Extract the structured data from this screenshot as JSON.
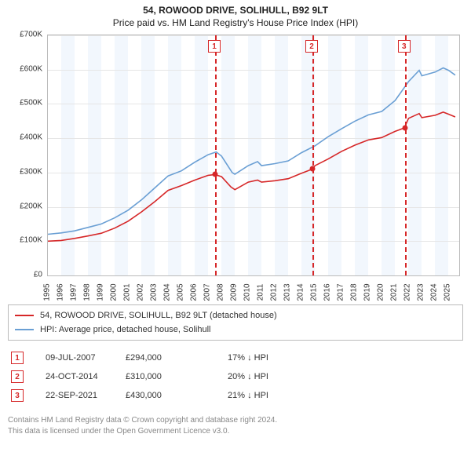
{
  "titles": {
    "line1": "54, ROWOOD DRIVE, SOLIHULL, B92 9LT",
    "line2": "Price paid vs. HM Land Registry's House Price Index (HPI)"
  },
  "chart": {
    "type": "line",
    "background_color": "#ffffff",
    "grid_color": "#e6e6e6",
    "alt_band_color": "#eaf1fb",
    "axis_color": "#bbbbbb",
    "y": {
      "min": 0,
      "max": 700000,
      "step": 100000,
      "prefix": "£",
      "suffix": "K",
      "ticks": [
        "£0",
        "£100K",
        "£200K",
        "£300K",
        "£400K",
        "£500K",
        "£600K",
        "£700K"
      ]
    },
    "x": {
      "min": 1995,
      "max": 2025.8,
      "step": 1,
      "ticks": [
        "1995",
        "1996",
        "1997",
        "1998",
        "1999",
        "2000",
        "2001",
        "2002",
        "2003",
        "2004",
        "2005",
        "2006",
        "2007",
        "2008",
        "2009",
        "2010",
        "2011",
        "2012",
        "2013",
        "2014",
        "2015",
        "2016",
        "2017",
        "2018",
        "2019",
        "2020",
        "2021",
        "2022",
        "2023",
        "2024",
        "2025"
      ]
    },
    "series": [
      {
        "name": "54, ROWOOD DRIVE, SOLIHULL, B92 9LT (detached house)",
        "color": "#d62728",
        "line_width": 1.6,
        "points": [
          [
            1995,
            100000
          ],
          [
            1996,
            102000
          ],
          [
            1997,
            108000
          ],
          [
            1998,
            115000
          ],
          [
            1999,
            123000
          ],
          [
            2000,
            138000
          ],
          [
            2001,
            158000
          ],
          [
            2002,
            185000
          ],
          [
            2003,
            215000
          ],
          [
            2004,
            248000
          ],
          [
            2005,
            262000
          ],
          [
            2006,
            278000
          ],
          [
            2007,
            292000
          ],
          [
            2007.5,
            294000
          ],
          [
            2008,
            288000
          ],
          [
            2008.7,
            258000
          ],
          [
            2009,
            250000
          ],
          [
            2010,
            272000
          ],
          [
            2010.7,
            278000
          ],
          [
            2011,
            272000
          ],
          [
            2012,
            276000
          ],
          [
            2013,
            282000
          ],
          [
            2014,
            298000
          ],
          [
            2014.8,
            310000
          ],
          [
            2015,
            320000
          ],
          [
            2016,
            340000
          ],
          [
            2017,
            362000
          ],
          [
            2018,
            380000
          ],
          [
            2019,
            395000
          ],
          [
            2020,
            402000
          ],
          [
            2021,
            420000
          ],
          [
            2021.7,
            430000
          ],
          [
            2022,
            458000
          ],
          [
            2022.8,
            472000
          ],
          [
            2023,
            460000
          ],
          [
            2024,
            467000
          ],
          [
            2024.6,
            476000
          ],
          [
            2025,
            470000
          ],
          [
            2025.5,
            462000
          ]
        ]
      },
      {
        "name": "HPI: Average price, detached house, Solihull",
        "color": "#6a9fd4",
        "line_width": 1.6,
        "points": [
          [
            1995,
            120000
          ],
          [
            1996,
            124000
          ],
          [
            1997,
            130000
          ],
          [
            1998,
            140000
          ],
          [
            1999,
            150000
          ],
          [
            2000,
            168000
          ],
          [
            2001,
            190000
          ],
          [
            2002,
            220000
          ],
          [
            2003,
            255000
          ],
          [
            2004,
            290000
          ],
          [
            2005,
            305000
          ],
          [
            2006,
            330000
          ],
          [
            2007,
            352000
          ],
          [
            2007.6,
            360000
          ],
          [
            2008,
            348000
          ],
          [
            2008.8,
            300000
          ],
          [
            2009,
            295000
          ],
          [
            2010,
            320000
          ],
          [
            2010.7,
            332000
          ],
          [
            2011,
            320000
          ],
          [
            2012,
            326000
          ],
          [
            2013,
            334000
          ],
          [
            2014,
            358000
          ],
          [
            2015,
            378000
          ],
          [
            2016,
            405000
          ],
          [
            2017,
            428000
          ],
          [
            2018,
            450000
          ],
          [
            2019,
            468000
          ],
          [
            2020,
            478000
          ],
          [
            2021,
            510000
          ],
          [
            2022,
            565000
          ],
          [
            2022.8,
            598000
          ],
          [
            2023,
            582000
          ],
          [
            2024,
            593000
          ],
          [
            2024.6,
            605000
          ],
          [
            2025,
            598000
          ],
          [
            2025.5,
            584000
          ]
        ]
      }
    ],
    "markers": [
      {
        "n": "1",
        "x": 2007.52,
        "y": 294000,
        "dot_color": "#d62728"
      },
      {
        "n": "2",
        "x": 2014.81,
        "y": 310000,
        "dot_color": "#d62728"
      },
      {
        "n": "3",
        "x": 2021.73,
        "y": 430000,
        "dot_color": "#d62728"
      }
    ],
    "marker_box_color": "#d62728",
    "marker_line_color": "#d62728"
  },
  "legend": {
    "rows": [
      {
        "color": "#d62728",
        "label": "54, ROWOOD DRIVE, SOLIHULL, B92 9LT (detached house)"
      },
      {
        "color": "#6a9fd4",
        "label": "HPI: Average price, detached house, Solihull"
      }
    ]
  },
  "events": [
    {
      "n": "1",
      "date": "09-JUL-2007",
      "price": "£294,000",
      "diff": "17% ↓ HPI"
    },
    {
      "n": "2",
      "date": "24-OCT-2014",
      "price": "£310,000",
      "diff": "20% ↓ HPI"
    },
    {
      "n": "3",
      "date": "22-SEP-2021",
      "price": "£430,000",
      "diff": "21% ↓ HPI"
    }
  ],
  "footer": {
    "line1": "Contains HM Land Registry data © Crown copyright and database right 2024.",
    "line2": "This data is licensed under the Open Government Licence v3.0."
  }
}
